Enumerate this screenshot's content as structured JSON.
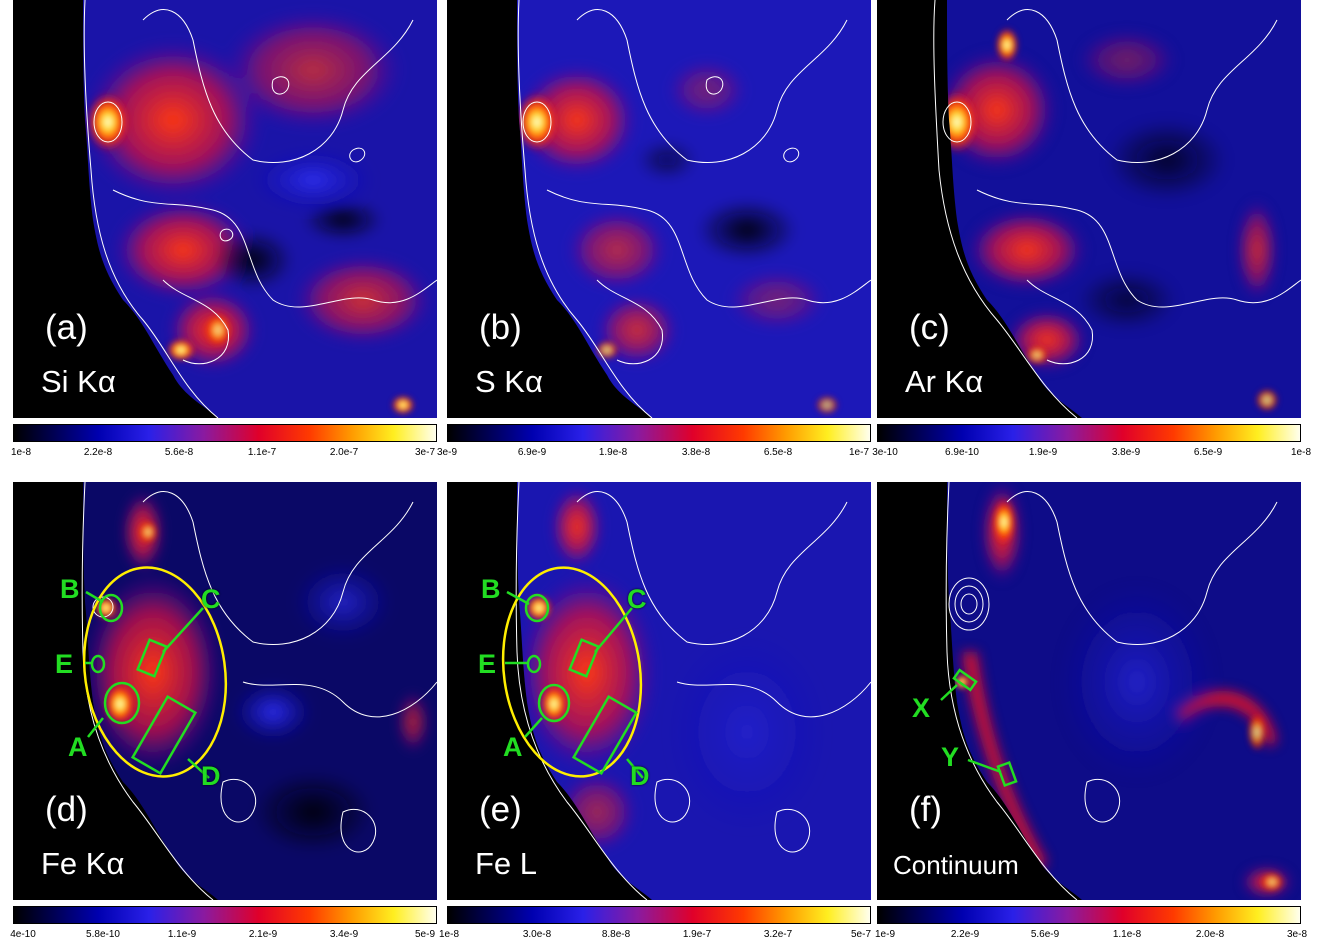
{
  "panels": [
    {
      "label": "(a)",
      "line": "Si Kα",
      "ticks": [
        "1e-8",
        "2.2e-8",
        "5.6e-8",
        "1.1e-7",
        "2.0e-7",
        "3e-7"
      ]
    },
    {
      "label": "(b)",
      "line": "S Kα",
      "ticks": [
        "3e-9",
        "6.9e-9",
        "1.9e-8",
        "3.8e-8",
        "6.5e-8",
        "1e-7"
      ]
    },
    {
      "label": "(c)",
      "line": "Ar Kα",
      "ticks": [
        "3e-10",
        "6.9e-10",
        "1.9e-9",
        "3.8e-9",
        "6.5e-9",
        "1e-8"
      ]
    },
    {
      "label": "(d)",
      "line": "Fe Kα",
      "ticks": [
        "4e-10",
        "5.8e-10",
        "1.1e-9",
        "2.1e-9",
        "3.4e-9",
        "5e-9"
      ]
    },
    {
      "label": "(e)",
      "line": "Fe L",
      "ticks": [
        "1e-8",
        "3.0e-8",
        "8.8e-8",
        "1.9e-7",
        "3.2e-7",
        "5e-7"
      ]
    },
    {
      "label": "(f)",
      "line": "Continuum",
      "ticks": [
        "1e-9",
        "2.2e-9",
        "5.6e-9",
        "1.1e-8",
        "2.0e-8",
        "3e-8"
      ]
    }
  ],
  "regions_fe": {
    "A": "A",
    "B": "B",
    "C": "C",
    "D": "D",
    "E": "E"
  },
  "regions_cont": {
    "X": "X",
    "Y": "Y"
  },
  "colors": {
    "region": "#22dd22",
    "ellipse": "#ffee00",
    "contour": "#ffffff"
  }
}
